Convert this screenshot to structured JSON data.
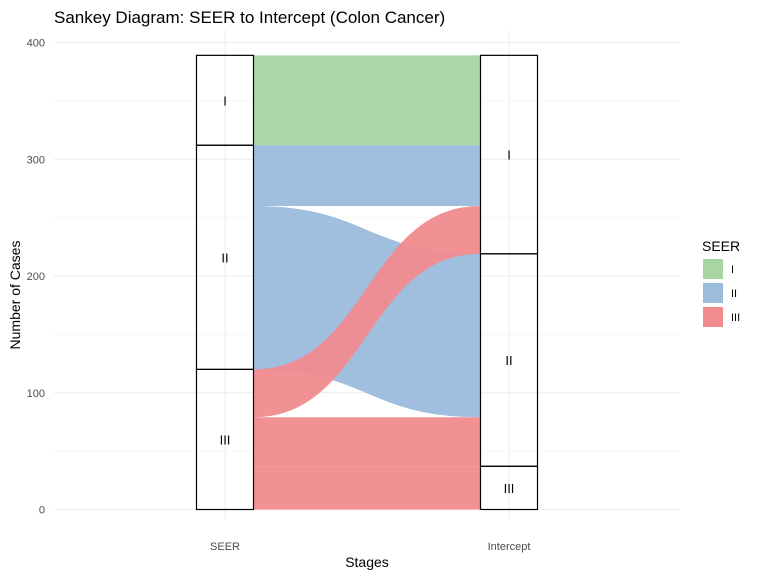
{
  "chart_data": {
    "type": "sankey",
    "title": "Sankey Diagram: SEER to Intercept (Colon Cancer)",
    "xlabel": "Stages",
    "ylabel": "Number of Cases",
    "axes": [
      "SEER",
      "Intercept"
    ],
    "ylim": [
      0,
      400
    ],
    "yticks": [
      0,
      100,
      200,
      300,
      400
    ],
    "grid": true,
    "legend": {
      "title": "SEER",
      "position": "right",
      "items": [
        {
          "label": "I",
          "color": "#a8d6a3"
        },
        {
          "label": "II",
          "color": "#9bbcdc"
        },
        {
          "label": "III",
          "color": "#f08b8e"
        }
      ]
    },
    "strata": {
      "SEER": [
        {
          "label": "I",
          "value": 77
        },
        {
          "label": "II",
          "value": 192
        },
        {
          "label": "III",
          "value": 120
        }
      ],
      "Intercept": [
        {
          "label": "I",
          "value": 170
        },
        {
          "label": "II",
          "value": 182
        },
        {
          "label": "III",
          "value": 37
        }
      ]
    },
    "flows": [
      {
        "from": "I",
        "to": "I",
        "value": 77,
        "series": "I"
      },
      {
        "from": "II",
        "to": "I",
        "value": 52,
        "series": "II"
      },
      {
        "from": "II",
        "to": "II",
        "value": 140,
        "series": "II"
      },
      {
        "from": "III",
        "to": "I",
        "value": 41,
        "series": "III"
      },
      {
        "from": "III",
        "to": "II",
        "value": 42,
        "series": "III"
      },
      {
        "from": "III",
        "to": "III",
        "value": 37,
        "series": "III"
      }
    ]
  }
}
